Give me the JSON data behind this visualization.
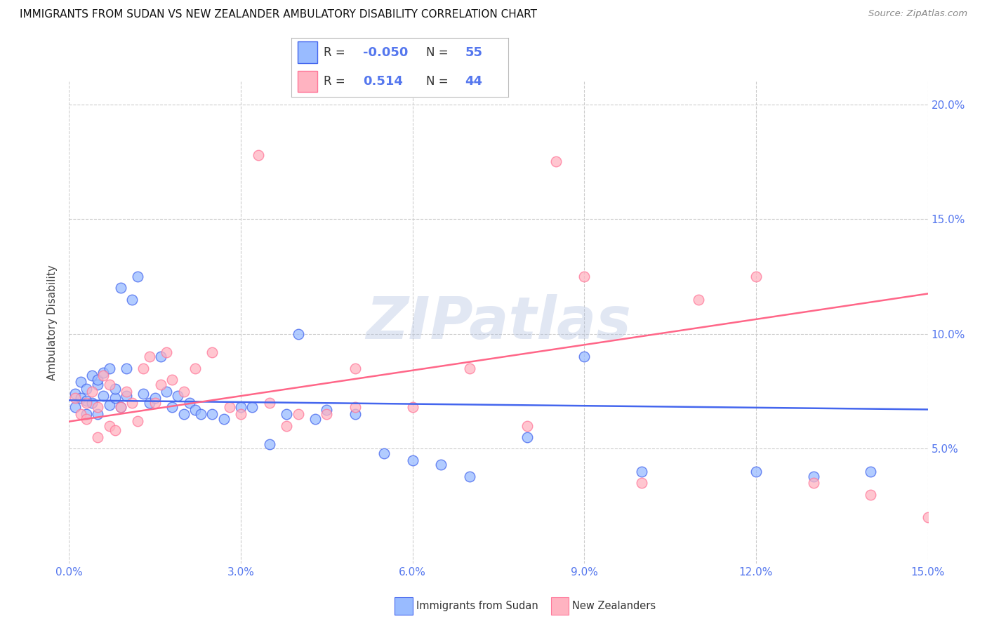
{
  "title": "IMMIGRANTS FROM SUDAN VS NEW ZEALANDER AMBULATORY DISABILITY CORRELATION CHART",
  "source": "Source: ZipAtlas.com",
  "legend1_label": "Immigrants from Sudan",
  "legend2_label": "New Zealanders",
  "ylabel": "Ambulatory Disability",
  "xlim": [
    0.0,
    0.15
  ],
  "ylim": [
    0.0,
    0.21
  ],
  "xtick_vals": [
    0.0,
    0.03,
    0.06,
    0.09,
    0.12,
    0.15
  ],
  "ytick_vals": [
    0.05,
    0.1,
    0.15,
    0.2
  ],
  "color_blue_fill": "#99BBFF",
  "color_blue_edge": "#4466EE",
  "color_pink_fill": "#FFB3C1",
  "color_pink_edge": "#FF7799",
  "color_blue_line": "#4466EE",
  "color_pink_line": "#FF6688",
  "tick_color": "#5577EE",
  "grid_color": "#CCCCCC",
  "R1": -0.05,
  "N1": 55,
  "R2": 0.514,
  "N2": 44,
  "watermark": "ZIPatlas",
  "background_color": "#FFFFFF"
}
